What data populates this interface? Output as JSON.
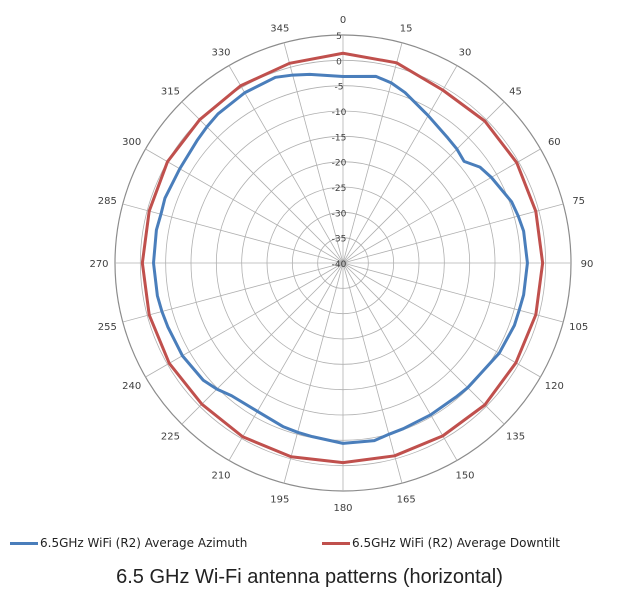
{
  "chart_data": {
    "type": "polar-line",
    "angles_deg": [
      0,
      15,
      30,
      45,
      60,
      75,
      90,
      105,
      120,
      135,
      150,
      165,
      180,
      195,
      210,
      225,
      240,
      255,
      270,
      285,
      300,
      315,
      330,
      345
    ],
    "angle_tick_labels": [
      "0",
      "15",
      "30",
      "45",
      "60",
      "75",
      "90",
      "105",
      "120",
      "135",
      "150",
      "165",
      "180",
      "195",
      "210",
      "225",
      "240",
      "255",
      "270",
      "285",
      "300",
      "315",
      "330",
      "345"
    ],
    "radial_range": [
      -40,
      5
    ],
    "radial_ticks": [
      5,
      0,
      -5,
      -10,
      -15,
      -20,
      -25,
      -30,
      -35,
      -40
    ],
    "radial_tick_labels": [
      "5",
      "0",
      "-5",
      "-10",
      "-15",
      "-20",
      "-25",
      "-30",
      "-35",
      "-40"
    ],
    "grid": true,
    "legend_position": "bottom",
    "series": [
      {
        "name": "6.5GHz WiFi (R2) Average Azimuth",
        "color": "#4a7ebb",
        "angles": [
          0,
          10,
          15,
          20,
          30,
          40,
          45,
          50,
          55,
          60,
          70,
          75,
          80,
          90,
          100,
          105,
          110,
          120,
          130,
          135,
          140,
          150,
          160,
          165,
          170,
          180,
          190,
          195,
          200,
          210,
          220,
          225,
          230,
          240,
          250,
          255,
          260,
          270,
          280,
          285,
          290,
          300,
          310,
          315,
          320,
          330,
          340,
          345,
          350,
          360
        ],
        "values": [
          -3.2,
          -2.6,
          -3.2,
          -4.2,
          -6.4,
          -7.8,
          -8.2,
          -8.8,
          -7.0,
          -6.2,
          -4.6,
          -4.2,
          -3.8,
          -3.6,
          -3.8,
          -4.0,
          -4.0,
          -4.4,
          -5.2,
          -5.2,
          -5.4,
          -5.4,
          -5.2,
          -5.0,
          -4.4,
          -4.4,
          -5.2,
          -5.4,
          -5.6,
          -6.2,
          -5.8,
          -4.8,
          -4.0,
          -3.4,
          -3.2,
          -3.0,
          -2.8,
          -2.6,
          -2.6,
          -2.8,
          -2.6,
          -2.8,
          -2.4,
          -2.0,
          -1.6,
          -1.2,
          -1.0,
          -1.6,
          -2.2,
          -3.2
        ]
      },
      {
        "name": "6.5GHz WiFi (R2) Average Downtilt",
        "color": "#c0504d",
        "angles": [
          0,
          15,
          30,
          45,
          60,
          75,
          90,
          105,
          120,
          135,
          150,
          165,
          180,
          195,
          210,
          225,
          240,
          255,
          270,
          285,
          300,
          315,
          330,
          345,
          360
        ],
        "values": [
          1.4,
          0.9,
          -0.6,
          -0.4,
          -0.4,
          -0.6,
          -0.6,
          -0.6,
          -0.6,
          -0.4,
          -0.6,
          -0.6,
          -0.6,
          -0.4,
          -0.4,
          -0.6,
          -0.4,
          -0.4,
          -0.4,
          -0.4,
          0.0,
          0.0,
          0.4,
          0.8,
          1.4
        ]
      }
    ]
  },
  "legend": {
    "items": [
      {
        "label": "6.5GHz WiFi (R2) Average Azimuth",
        "color": "#4a7ebb"
      },
      {
        "label": "6.5GHz WiFi (R2) Average Downtilt",
        "color": "#c0504d"
      }
    ]
  },
  "caption": "6.5 GHz Wi-Fi antenna patterns (horizontal)"
}
